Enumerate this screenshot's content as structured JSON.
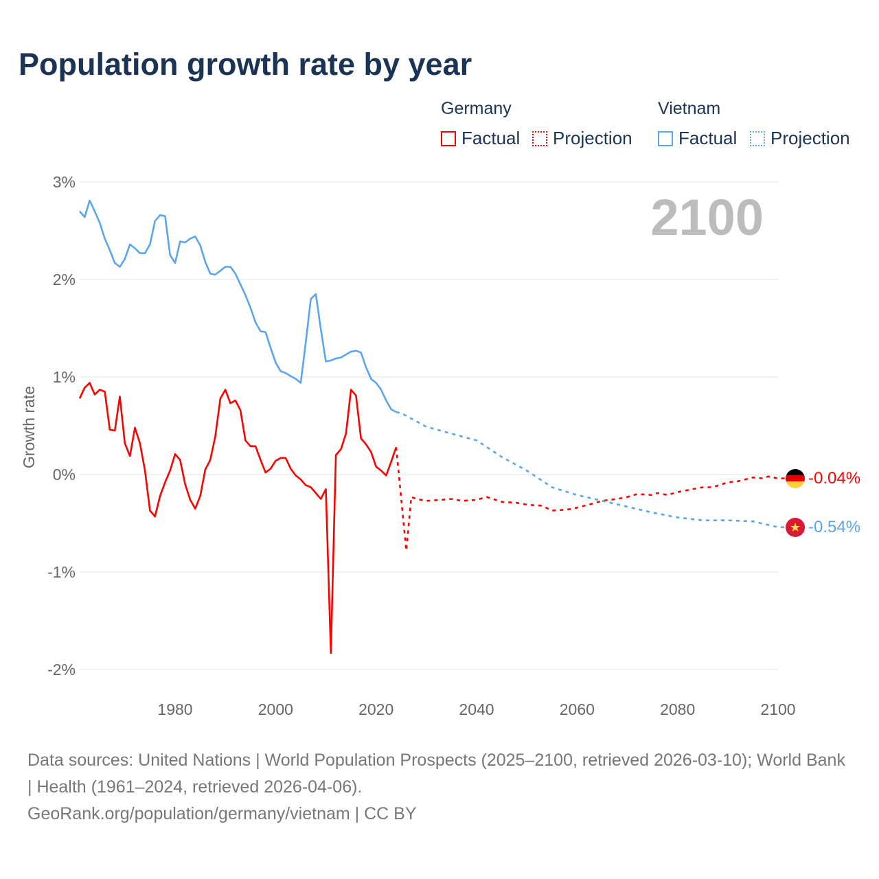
{
  "title": "Population growth rate by year",
  "legend": {
    "groups": [
      {
        "country": "Germany",
        "factual": "Factual",
        "projection": "Projection",
        "color": "#ff0000"
      },
      {
        "country": "Vietnam",
        "factual": "Factual",
        "projection": "Projection",
        "color": "#5aa5eb"
      }
    ]
  },
  "year_display": "2100",
  "footer": {
    "sources": "Data sources: United Nations | World Population Prospects (2025–2100, retrieved 2026-03-10); World Bank | Health (1961–2024, retrieved 2026-04-06).",
    "credit": "GeoRank.org/population/germany/vietnam | CC BY"
  },
  "chart_data": {
    "type": "line",
    "title": "Population growth rate by year",
    "xlabel": "",
    "ylabel": "Growth rate",
    "xlim": [
      1961,
      2100
    ],
    "ylim": [
      -2,
      3
    ],
    "x_ticks": [
      "1980",
      "2000",
      "2020",
      "2040",
      "2060",
      "2080",
      "2100"
    ],
    "x_tick_values": [
      1980,
      2000,
      2020,
      2040,
      2060,
      2080,
      2100
    ],
    "y_ticks": [
      "3%",
      "2%",
      "1%",
      "0%",
      "-1%",
      "-2%"
    ],
    "y_tick_values": [
      3,
      2,
      1,
      0,
      -1,
      -2
    ],
    "grid": true,
    "legend_position": "top-right",
    "series": [
      {
        "name": "Germany",
        "color": "#ff0000",
        "factual_start_year": 1961,
        "factual": [
          0.78,
          0.89,
          0.94,
          0.82,
          0.87,
          0.85,
          0.46,
          0.45,
          0.8,
          0.32,
          0.19,
          0.48,
          0.32,
          0.04,
          -0.37,
          -0.43,
          -0.22,
          -0.08,
          0.04,
          0.21,
          0.15,
          -0.1,
          -0.26,
          -0.35,
          -0.22,
          0.05,
          0.15,
          0.39,
          0.78,
          0.87,
          0.73,
          0.76,
          0.66,
          0.35,
          0.29,
          0.29,
          0.15,
          0.02,
          0.06,
          0.14,
          0.17,
          0.17,
          0.06,
          -0.01,
          -0.05,
          -0.11,
          -0.13,
          -0.19,
          -0.25,
          -0.15,
          -1.83,
          0.2,
          0.26,
          0.42,
          0.87,
          0.81,
          0.37,
          0.31,
          0.23,
          0.08,
          0.04,
          -0.01,
          0.13,
          0.28
        ],
        "projection_years": [
          2025,
          2026,
          2027,
          2028,
          2030,
          2033,
          2035,
          2037,
          2040,
          2042,
          2045,
          2048,
          2050,
          2053,
          2055,
          2058,
          2060,
          2063,
          2065,
          2068,
          2070,
          2072,
          2075,
          2076,
          2078,
          2080,
          2083,
          2085,
          2087,
          2090,
          2092,
          2095,
          2097,
          2098,
          2100
        ],
        "projection": [
          -0.25,
          -0.78,
          -0.23,
          -0.25,
          -0.27,
          -0.26,
          -0.25,
          -0.27,
          -0.26,
          -0.23,
          -0.28,
          -0.29,
          -0.31,
          -0.32,
          -0.37,
          -0.36,
          -0.34,
          -0.3,
          -0.27,
          -0.25,
          -0.23,
          -0.2,
          -0.21,
          -0.19,
          -0.21,
          -0.18,
          -0.15,
          -0.13,
          -0.13,
          -0.08,
          -0.07,
          -0.03,
          -0.04,
          -0.02,
          -0.04
        ],
        "end_label": "-0.04%"
      },
      {
        "name": "Vietnam",
        "color": "#5aa5eb",
        "factual_start_year": 1961,
        "factual": [
          2.7,
          2.64,
          2.81,
          2.7,
          2.58,
          2.42,
          2.3,
          2.17,
          2.13,
          2.21,
          2.36,
          2.32,
          2.27,
          2.27,
          2.36,
          2.6,
          2.66,
          2.65,
          2.25,
          2.17,
          2.39,
          2.38,
          2.42,
          2.44,
          2.35,
          2.18,
          2.06,
          2.05,
          2.09,
          2.13,
          2.13,
          2.06,
          1.95,
          1.84,
          1.71,
          1.56,
          1.47,
          1.46,
          1.3,
          1.15,
          1.06,
          1.04,
          1.01,
          0.98,
          0.94,
          1.35,
          1.8,
          1.85,
          1.49,
          1.16,
          1.17,
          1.19,
          1.2,
          1.23,
          1.26,
          1.27,
          1.25,
          1.1,
          0.98,
          0.94,
          0.87,
          0.76,
          0.67,
          0.64
        ],
        "projection_years": [
          2025,
          2030,
          2035,
          2040,
          2045,
          2050,
          2055,
          2060,
          2065,
          2070,
          2075,
          2080,
          2085,
          2090,
          2095,
          2100
        ],
        "projection": [
          0.63,
          0.49,
          0.42,
          0.35,
          0.18,
          0.04,
          -0.13,
          -0.21,
          -0.27,
          -0.33,
          -0.39,
          -0.44,
          -0.47,
          -0.47,
          -0.48,
          -0.54
        ],
        "end_label": "-0.54%"
      }
    ]
  }
}
